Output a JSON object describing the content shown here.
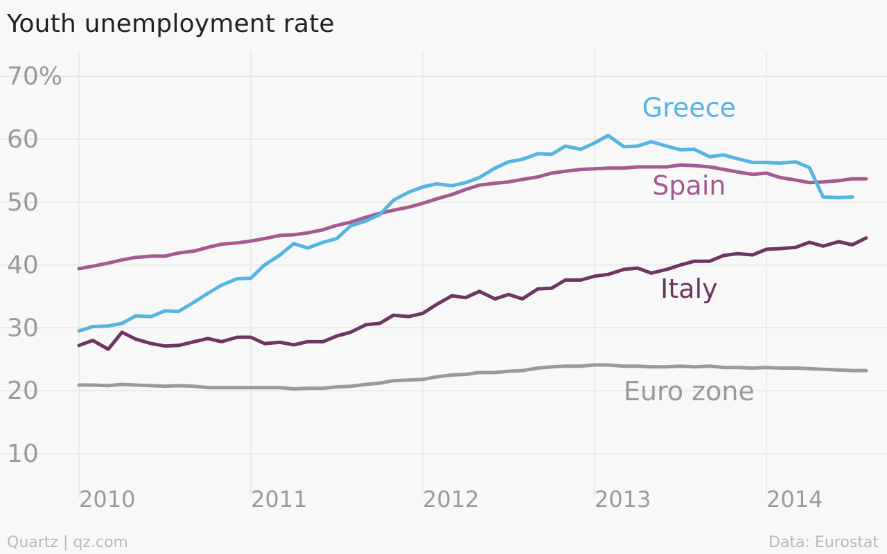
{
  "chart_data": {
    "type": "line",
    "title": "Youth unemployment rate",
    "xlabel": "",
    "ylabel": "",
    "xlim": [
      2010,
      2014.6
    ],
    "ylim": [
      5,
      72
    ],
    "x_ticks": [
      2010,
      2011,
      2012,
      2013,
      2014
    ],
    "x_tick_labels": [
      "2010",
      "2011",
      "2012",
      "2013",
      "2014"
    ],
    "y_ticks": [
      10,
      20,
      30,
      40,
      50,
      60,
      70
    ],
    "y_tick_labels": [
      "10",
      "20",
      "30",
      "40",
      "50",
      "60",
      "70%"
    ],
    "grid": true,
    "series": [
      {
        "name": "Greece",
        "color": "#55b4e1",
        "x": [
          2010.0,
          2010.08,
          2010.17,
          2010.25,
          2010.33,
          2010.42,
          2010.5,
          2010.58,
          2010.67,
          2010.75,
          2010.83,
          2010.92,
          2011.0,
          2011.08,
          2011.17,
          2011.25,
          2011.33,
          2011.42,
          2011.5,
          2011.58,
          2011.67,
          2011.75,
          2011.83,
          2011.92,
          2012.0,
          2012.08,
          2012.17,
          2012.25,
          2012.33,
          2012.42,
          2012.5,
          2012.58,
          2012.67,
          2012.75,
          2012.83,
          2012.92,
          2013.0,
          2013.08,
          2013.17,
          2013.25,
          2013.33,
          2013.42,
          2013.5,
          2013.58,
          2013.67,
          2013.75,
          2013.83,
          2013.92,
          2014.0,
          2014.08,
          2014.17,
          2014.25,
          2014.33,
          2014.42,
          2014.5
        ],
        "values": [
          29.5,
          30.2,
          30.3,
          30.7,
          31.9,
          31.8,
          32.7,
          32.6,
          34.1,
          35.5,
          36.8,
          37.8,
          37.9,
          40.0,
          41.6,
          43.4,
          42.7,
          43.6,
          44.2,
          46.2,
          47.0,
          48.0,
          50.3,
          51.6,
          52.4,
          52.9,
          52.6,
          53.1,
          53.9,
          55.4,
          56.4,
          56.8,
          57.7,
          57.6,
          58.9,
          58.4,
          59.4,
          60.6,
          58.8,
          58.9,
          59.6,
          58.9,
          58.3,
          58.4,
          57.2,
          57.5,
          56.9,
          56.3,
          56.3,
          56.2,
          56.4,
          55.5,
          50.8,
          50.7,
          50.8
        ]
      },
      {
        "name": "Spain",
        "color": "#a45a90",
        "x": [
          2010.0,
          2010.08,
          2010.17,
          2010.25,
          2010.33,
          2010.42,
          2010.5,
          2010.58,
          2010.67,
          2010.75,
          2010.83,
          2010.92,
          2011.0,
          2011.08,
          2011.17,
          2011.25,
          2011.33,
          2011.42,
          2011.5,
          2011.58,
          2011.67,
          2011.75,
          2011.83,
          2011.92,
          2012.0,
          2012.08,
          2012.17,
          2012.25,
          2012.33,
          2012.42,
          2012.5,
          2012.58,
          2012.67,
          2012.75,
          2012.83,
          2012.92,
          2013.0,
          2013.08,
          2013.17,
          2013.25,
          2013.33,
          2013.42,
          2013.5,
          2013.58,
          2013.67,
          2013.75,
          2013.83,
          2013.92,
          2014.0,
          2014.08,
          2014.17,
          2014.25,
          2014.33,
          2014.42,
          2014.5,
          2014.58
        ],
        "values": [
          39.4,
          39.8,
          40.3,
          40.8,
          41.2,
          41.4,
          41.4,
          41.9,
          42.2,
          42.8,
          43.3,
          43.5,
          43.8,
          44.2,
          44.7,
          44.8,
          45.1,
          45.6,
          46.3,
          46.8,
          47.6,
          48.2,
          48.7,
          49.2,
          49.8,
          50.5,
          51.2,
          52.0,
          52.7,
          53.0,
          53.2,
          53.6,
          54.0,
          54.6,
          54.9,
          55.2,
          55.3,
          55.4,
          55.4,
          55.6,
          55.6,
          55.6,
          55.9,
          55.8,
          55.6,
          55.2,
          54.8,
          54.4,
          54.6,
          53.9,
          53.5,
          53.1,
          53.2,
          53.4,
          53.7,
          53.7
        ]
      },
      {
        "name": "Italy",
        "color": "#6e3560",
        "x": [
          2010.0,
          2010.08,
          2010.17,
          2010.25,
          2010.33,
          2010.42,
          2010.5,
          2010.58,
          2010.67,
          2010.75,
          2010.83,
          2010.92,
          2011.0,
          2011.08,
          2011.17,
          2011.25,
          2011.33,
          2011.42,
          2011.5,
          2011.58,
          2011.67,
          2011.75,
          2011.83,
          2011.92,
          2012.0,
          2012.08,
          2012.17,
          2012.25,
          2012.33,
          2012.42,
          2012.5,
          2012.58,
          2012.67,
          2012.75,
          2012.83,
          2012.92,
          2013.0,
          2013.08,
          2013.17,
          2013.25,
          2013.33,
          2013.42,
          2013.5,
          2013.58,
          2013.67,
          2013.75,
          2013.83,
          2013.92,
          2014.0,
          2014.08,
          2014.17,
          2014.25,
          2014.33,
          2014.42,
          2014.5,
          2014.58
        ],
        "values": [
          27.2,
          28.0,
          26.6,
          29.3,
          28.2,
          27.5,
          27.1,
          27.2,
          27.8,
          28.3,
          27.8,
          28.5,
          28.5,
          27.5,
          27.7,
          27.3,
          27.8,
          27.8,
          28.7,
          29.3,
          30.5,
          30.7,
          32.0,
          31.8,
          32.3,
          33.7,
          35.1,
          34.8,
          35.8,
          34.6,
          35.3,
          34.6,
          36.2,
          36.3,
          37.6,
          37.6,
          38.2,
          38.5,
          39.3,
          39.5,
          38.7,
          39.3,
          40.0,
          40.6,
          40.6,
          41.5,
          41.8,
          41.6,
          42.5,
          42.6,
          42.8,
          43.6,
          43.0,
          43.7,
          43.2,
          44.3
        ]
      },
      {
        "name": "Euro zone",
        "color": "#9a9a9a",
        "x": [
          2010.0,
          2010.08,
          2010.17,
          2010.25,
          2010.33,
          2010.42,
          2010.5,
          2010.58,
          2010.67,
          2010.75,
          2010.83,
          2010.92,
          2011.0,
          2011.08,
          2011.17,
          2011.25,
          2011.33,
          2011.42,
          2011.5,
          2011.58,
          2011.67,
          2011.75,
          2011.83,
          2011.92,
          2012.0,
          2012.08,
          2012.17,
          2012.25,
          2012.33,
          2012.42,
          2012.5,
          2012.58,
          2012.67,
          2012.75,
          2012.83,
          2012.92,
          2013.0,
          2013.08,
          2013.17,
          2013.25,
          2013.33,
          2013.42,
          2013.5,
          2013.58,
          2013.67,
          2013.75,
          2013.83,
          2013.92,
          2014.0,
          2014.08,
          2014.17,
          2014.25,
          2014.33,
          2014.42,
          2014.5,
          2014.58
        ],
        "values": [
          20.9,
          20.9,
          20.8,
          21.0,
          20.9,
          20.8,
          20.7,
          20.8,
          20.7,
          20.5,
          20.5,
          20.5,
          20.5,
          20.5,
          20.5,
          20.3,
          20.4,
          20.4,
          20.6,
          20.7,
          21.0,
          21.2,
          21.6,
          21.7,
          21.8,
          22.2,
          22.5,
          22.6,
          22.9,
          22.9,
          23.1,
          23.2,
          23.6,
          23.8,
          23.9,
          23.9,
          24.1,
          24.1,
          23.9,
          23.9,
          23.8,
          23.8,
          23.9,
          23.8,
          23.9,
          23.7,
          23.7,
          23.6,
          23.7,
          23.6,
          23.6,
          23.5,
          23.4,
          23.3,
          23.2,
          23.2
        ]
      }
    ],
    "annotations": [
      {
        "text": "Greece",
        "series": "Greece",
        "x": 2013.55,
        "y": 63.6
      },
      {
        "text": "Spain",
        "series": "Spain",
        "x": 2013.55,
        "y": 51.2
      },
      {
        "text": "Italy",
        "series": "Italy",
        "x": 2013.55,
        "y": 34.8
      },
      {
        "text": "Euro zone",
        "series": "Euro zone",
        "x": 2013.55,
        "y": 18.5
      }
    ]
  },
  "footer": {
    "source_left": "Quartz | qz.com",
    "source_right": "Data: Eurostat"
  }
}
